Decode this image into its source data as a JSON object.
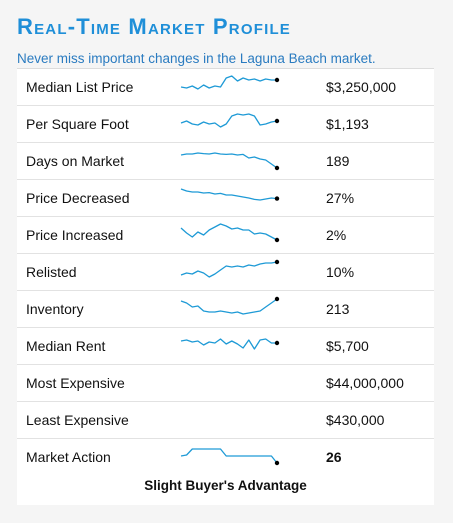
{
  "header": {
    "title": "Real-Time Market Profile",
    "subtitle": "Never miss important changes in the Laguna Beach market."
  },
  "colors": {
    "accent": "#1f8fd8",
    "sparkline": "#1e9ad6",
    "endpoint": "#000000"
  },
  "rows": [
    {
      "label": "Median List Price",
      "value": "$3,250,000",
      "trend": [
        0.45,
        0.4,
        0.5,
        0.35,
        0.55,
        0.4,
        0.5,
        0.45,
        0.9,
        1.0,
        0.75,
        0.9,
        0.8,
        0.85,
        0.75,
        0.85,
        0.8,
        0.8
      ]
    },
    {
      "label": "Per Square Foot",
      "value": "$1,193",
      "trend": [
        0.5,
        0.6,
        0.45,
        0.4,
        0.55,
        0.45,
        0.5,
        0.3,
        0.45,
        0.85,
        0.95,
        0.9,
        0.95,
        0.85,
        0.4,
        0.45,
        0.55,
        0.6
      ]
    },
    {
      "label": "Days on Market",
      "value": "189",
      "trend": [
        0.75,
        0.8,
        0.8,
        0.85,
        0.82,
        0.8,
        0.85,
        0.8,
        0.78,
        0.8,
        0.75,
        0.78,
        0.6,
        0.65,
        0.55,
        0.5,
        0.3,
        0.1
      ]
    },
    {
      "label": "Price Decreased",
      "value": "27%",
      "trend": [
        0.9,
        0.8,
        0.75,
        0.75,
        0.7,
        0.72,
        0.65,
        0.68,
        0.6,
        0.6,
        0.55,
        0.5,
        0.45,
        0.38,
        0.35,
        0.4,
        0.45,
        0.42
      ]
    },
    {
      "label": "Price Increased",
      "value": "2%",
      "trend": [
        0.8,
        0.55,
        0.35,
        0.6,
        0.45,
        0.7,
        0.85,
        1.0,
        0.9,
        0.75,
        0.8,
        0.7,
        0.7,
        0.5,
        0.55,
        0.5,
        0.35,
        0.2
      ]
    },
    {
      "label": "Relisted",
      "value": "10%",
      "trend": [
        0.3,
        0.4,
        0.35,
        0.5,
        0.4,
        0.2,
        0.35,
        0.55,
        0.75,
        0.7,
        0.75,
        0.7,
        0.8,
        0.75,
        0.85,
        0.9,
        0.9,
        0.95
      ]
    },
    {
      "label": "Inventory",
      "value": "213",
      "trend": [
        0.85,
        0.75,
        0.55,
        0.6,
        0.35,
        0.3,
        0.3,
        0.35,
        0.3,
        0.25,
        0.3,
        0.2,
        0.25,
        0.3,
        0.35,
        0.55,
        0.75,
        0.95
      ]
    },
    {
      "label": "Median Rent",
      "value": "$5,700",
      "trend": [
        0.7,
        0.75,
        0.65,
        0.7,
        0.5,
        0.65,
        0.6,
        0.8,
        0.55,
        0.7,
        0.55,
        0.35,
        0.75,
        0.3,
        0.75,
        0.8,
        0.6,
        0.6
      ]
    },
    {
      "label": "Most Expensive",
      "value": "$44,000,000",
      "trend": null
    },
    {
      "label": "Least Expensive",
      "value": "$430,000",
      "trend": null
    },
    {
      "label": "Market Action",
      "value": "26",
      "trend": [
        0.5,
        0.55,
        0.85,
        0.85,
        0.85,
        0.85,
        0.85,
        0.85,
        0.5,
        0.5,
        0.5,
        0.5,
        0.5,
        0.5,
        0.5,
        0.5,
        0.5,
        0.15
      ]
    }
  ],
  "footer": {
    "advantage": "Slight Buyer's Advantage"
  }
}
